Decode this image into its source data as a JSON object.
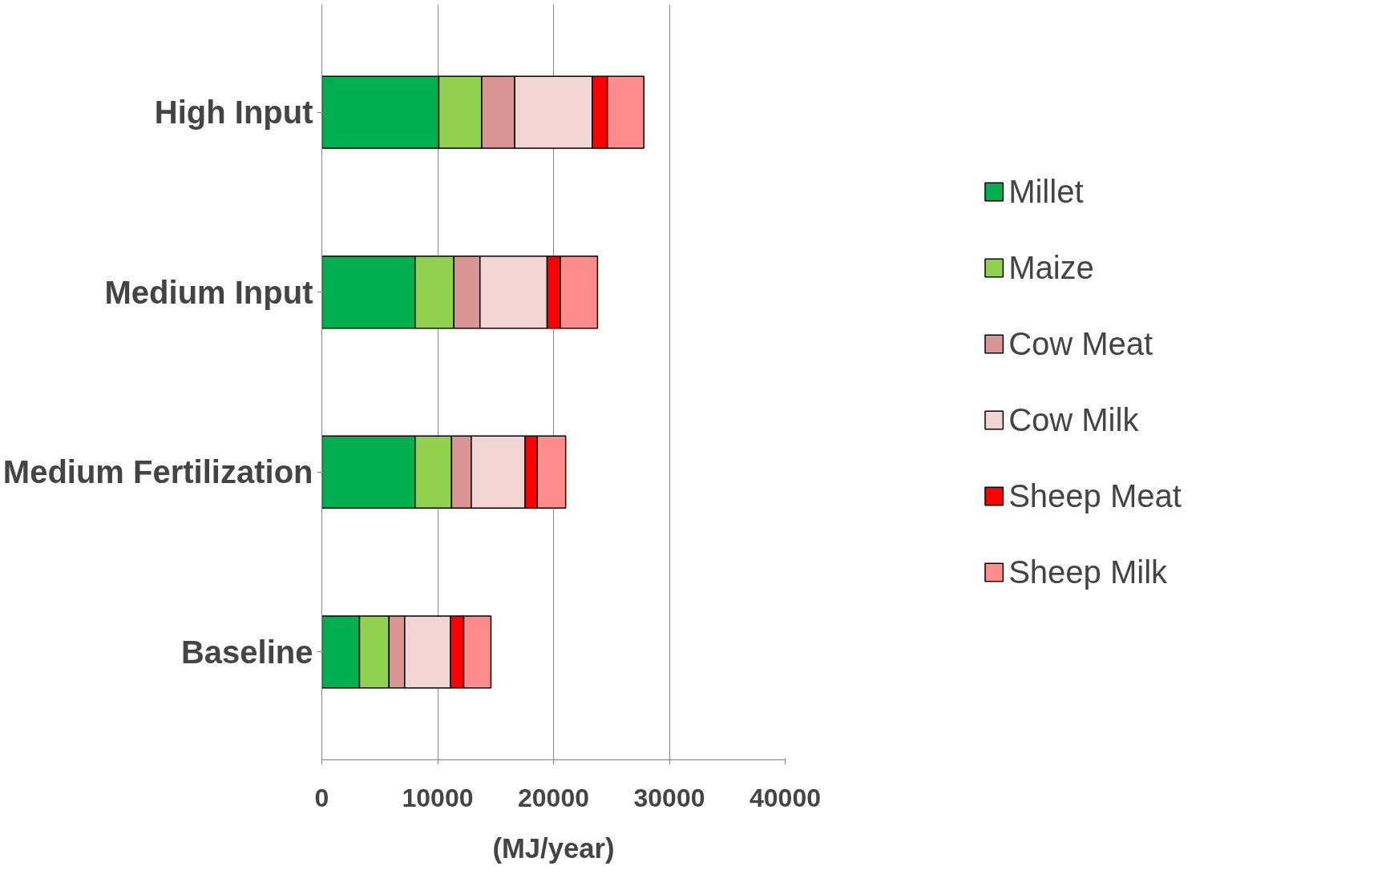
{
  "chart_data": {
    "type": "bar",
    "orientation": "horizontal",
    "stacked": true,
    "xlabel": "(MJ/year)",
    "categories": [
      "High Input",
      "Medium Input",
      "Medium Fertilization",
      "Baseline"
    ],
    "series": [
      {
        "name": "Millet",
        "color": "#00b050",
        "values": [
          10100,
          8050,
          8050,
          3250
        ]
      },
      {
        "name": "Maize",
        "color": "#92d050",
        "values": [
          3700,
          3350,
          3150,
          2550
        ]
      },
      {
        "name": "Cow Meat",
        "color": "#d99694",
        "values": [
          2850,
          2250,
          1700,
          1350
        ]
      },
      {
        "name": "Cow Milk",
        "color": "#f2d4d3",
        "values": [
          6700,
          5800,
          4650,
          3950
        ]
      },
      {
        "name": "Sheep Meat",
        "color": "#ff0000",
        "values": [
          1300,
          1150,
          1050,
          1150
        ]
      },
      {
        "name": "Sheep Milk",
        "color": "#ff8c8c",
        "values": [
          3150,
          3200,
          2450,
          2350
        ]
      }
    ],
    "xlim": [
      0,
      40000
    ],
    "xticks": [
      0,
      10000,
      20000,
      30000,
      40000
    ],
    "grid": "x",
    "legend": "right"
  }
}
